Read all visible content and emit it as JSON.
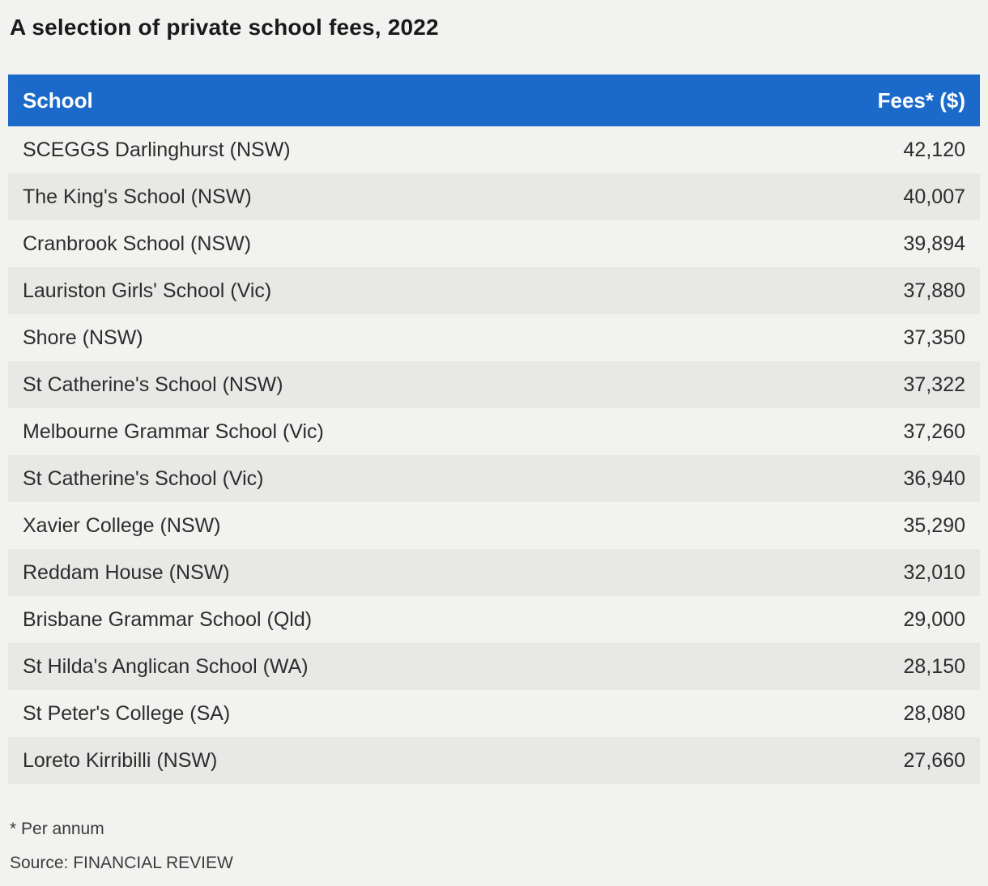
{
  "title": "A selection of private school fees, 2022",
  "chart_data": {
    "type": "table",
    "title": "A selection of private school fees, 2022",
    "columns": [
      "School",
      "Fees* ($)"
    ],
    "rows": [
      [
        "SCEGGS Darlinghurst (NSW)",
        "42,120"
      ],
      [
        "The King's School (NSW)",
        "40,007"
      ],
      [
        "Cranbrook School (NSW)",
        "39,894"
      ],
      [
        "Lauriston Girls' School (Vic)",
        "37,880"
      ],
      [
        "Shore (NSW)",
        "37,350"
      ],
      [
        "St Catherine's School (NSW)",
        "37,322"
      ],
      [
        "Melbourne Grammar School (Vic)",
        "37,260"
      ],
      [
        "St Catherine's School (Vic)",
        "36,940"
      ],
      [
        "Xavier College (NSW)",
        "35,290"
      ],
      [
        "Reddam House (NSW)",
        "32,010"
      ],
      [
        "Brisbane Grammar School (Qld)",
        "29,000"
      ],
      [
        "St Hilda's Anglican School (WA)",
        "28,150"
      ],
      [
        "St Peter's College (SA)",
        "28,080"
      ],
      [
        "Loreto Kirribilli (NSW)",
        "27,660"
      ]
    ],
    "footnote": "* Per annum",
    "source": "Source: FINANCIAL REVIEW",
    "legend_position": "none",
    "grid": false
  },
  "header": {
    "school_label": "School",
    "fees_label": "Fees* ($)"
  },
  "colors": {
    "header_bg": "#1b6ac9",
    "header_text": "#ffffff",
    "row_light": "#f2f2f0",
    "row_dark": "#e8e8e6",
    "page_bg": "#f2f2f0",
    "body_text": "#2d2d2d",
    "footnote_text": "#3c3c3c"
  }
}
